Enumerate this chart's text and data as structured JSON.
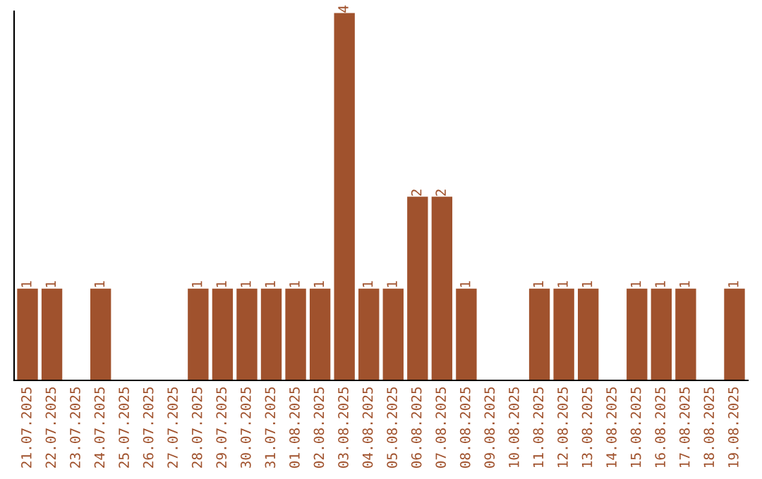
{
  "chart_data": {
    "type": "bar",
    "categories": [
      "21.07.2025",
      "22.07.2025",
      "23.07.2025",
      "24.07.2025",
      "25.07.2025",
      "26.07.2025",
      "27.07.2025",
      "28.07.2025",
      "29.07.2025",
      "30.07.2025",
      "31.07.2025",
      "01.08.2025",
      "02.08.2025",
      "03.08.2025",
      "04.08.2025",
      "05.08.2025",
      "06.08.2025",
      "07.08.2025",
      "08.08.2025",
      "09.08.2025",
      "10.08.2025",
      "11.08.2025",
      "12.08.2025",
      "13.08.2025",
      "14.08.2025",
      "15.08.2025",
      "16.08.2025",
      "17.08.2025",
      "18.08.2025",
      "19.08.2025"
    ],
    "values": [
      1,
      1,
      0,
      1,
      0,
      0,
      0,
      1,
      1,
      1,
      1,
      1,
      1,
      4,
      1,
      1,
      2,
      2,
      1,
      0,
      0,
      1,
      1,
      1,
      0,
      1,
      1,
      1,
      0,
      1
    ],
    "value_labels": [
      "1",
      "1",
      null,
      "1",
      null,
      null,
      null,
      "1",
      "1",
      "1",
      "1",
      "1",
      "1",
      "4",
      "1",
      "1",
      "2",
      "2",
      "1",
      null,
      null,
      "1",
      "1",
      "1",
      null,
      "1",
      "1",
      "1",
      null,
      "1"
    ],
    "color": "#a0522d",
    "tick_labels": "x",
    "grid": false,
    "legend": false
  }
}
